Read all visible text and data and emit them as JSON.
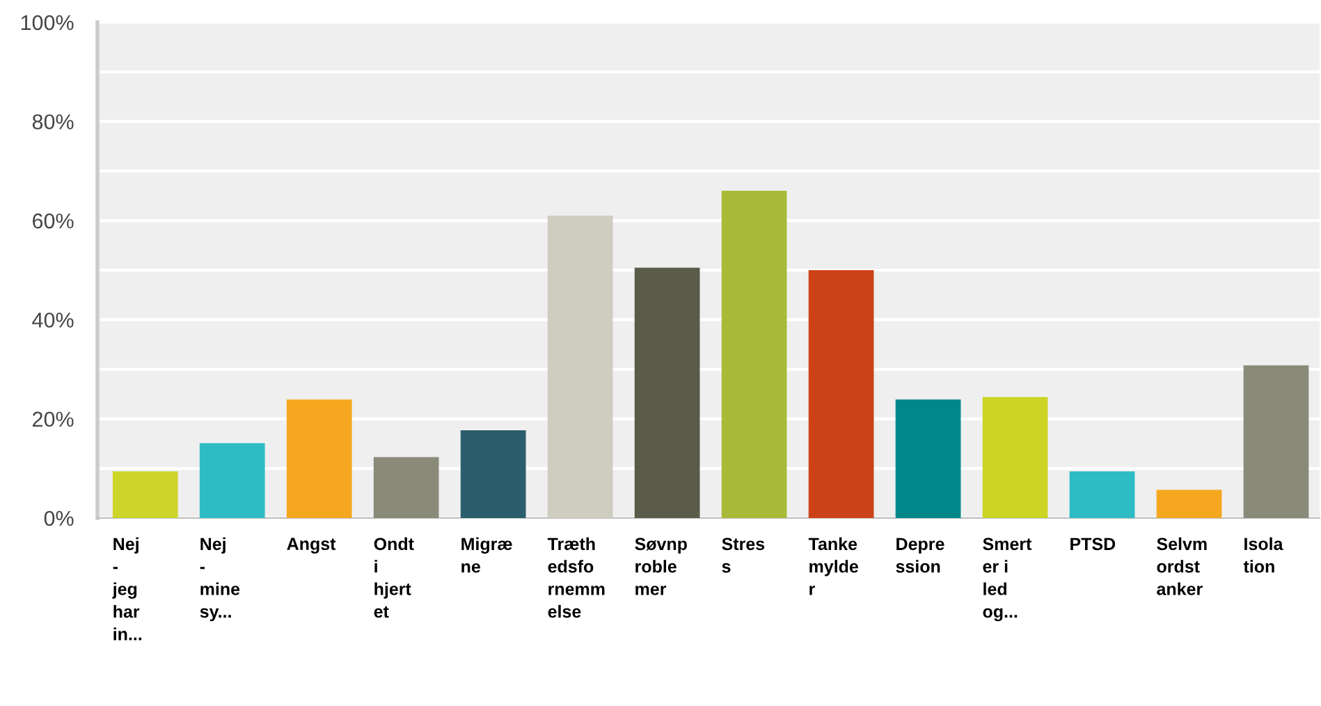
{
  "chart_data": {
    "type": "bar",
    "categories": [
      "Nej\n-\njeg\nhar\nin...",
      "Nej\n-\nmine\nsy...",
      "Angst",
      "Ondt\ni\nhjert\net",
      "Migræ\nne",
      "Træth\nedsfo\nrnemm\nelse",
      "Søvnp\nroble\nmer",
      "Stres\ns",
      "Tanke\nmylde\nr",
      "Depre\nssion",
      "Smert\ner i\nled\nog...",
      "PTSD",
      "Selvm\nordst\nanker",
      "Isola\ntion"
    ],
    "values": [
      9.4,
      15.1,
      23.9,
      12.3,
      17.7,
      61.0,
      50.5,
      66.0,
      50.0,
      23.9,
      24.4,
      9.4,
      5.7,
      30.8
    ],
    "colors": [
      "#cdd42a",
      "#2ebcc4",
      "#f5a81f",
      "#8a8a7a",
      "#2a5e6c",
      "#cfcdc0",
      "#5b5b4a",
      "#a8ba38",
      "#cc4218",
      "#00878a",
      "#ccd424",
      "#2ebcc4",
      "#f5a81f",
      "#8a8a7a"
    ],
    "ylim": [
      0,
      100
    ],
    "yticks": [
      {
        "value": 0,
        "label": "0%"
      },
      {
        "value": 10,
        "label": null
      },
      {
        "value": 20,
        "label": "20%"
      },
      {
        "value": 30,
        "label": null
      },
      {
        "value": 40,
        "label": "40%"
      },
      {
        "value": 50,
        "label": null
      },
      {
        "value": 60,
        "label": "60%"
      },
      {
        "value": 70,
        "label": null
      },
      {
        "value": 80,
        "label": "80%"
      },
      {
        "value": 90,
        "label": null
      },
      {
        "value": 100,
        "label": "100%"
      }
    ],
    "grid": "y",
    "legend": false
  }
}
